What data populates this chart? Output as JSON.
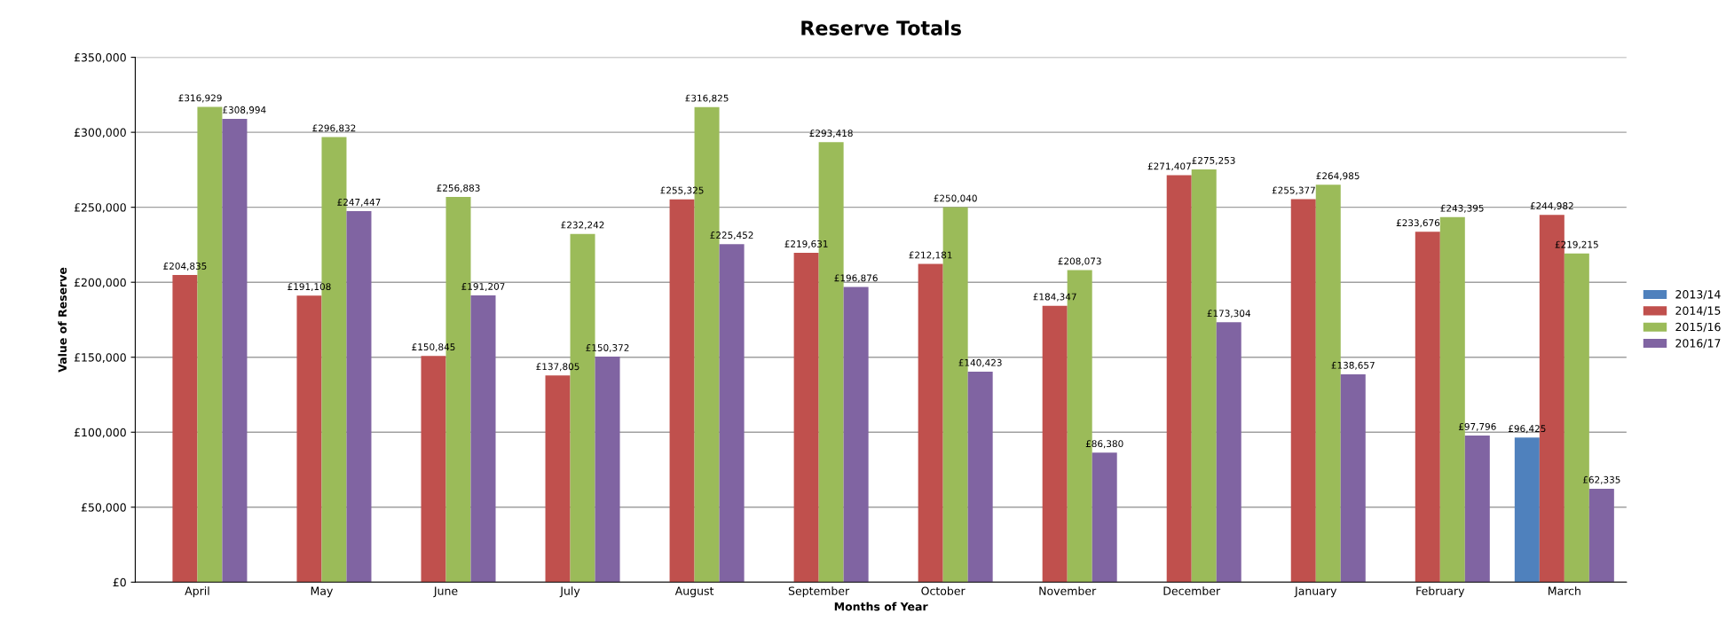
{
  "chart_data": {
    "type": "bar",
    "title": "Reserve Totals",
    "xlabel": "Months of Year",
    "ylabel": "Value of Reserve",
    "categories": [
      "April",
      "May",
      "June",
      "July",
      "August",
      "September",
      "October",
      "November",
      "December",
      "January",
      "February",
      "March"
    ],
    "series": [
      {
        "name": "2013/14",
        "color": "#4f81bd",
        "values": [
          null,
          null,
          null,
          null,
          null,
          null,
          null,
          null,
          null,
          null,
          null,
          96425
        ],
        "value_labels": [
          null,
          null,
          null,
          null,
          null,
          null,
          null,
          null,
          null,
          null,
          null,
          "£96,425"
        ]
      },
      {
        "name": "2014/15",
        "color": "#c0504d",
        "values": [
          204835,
          191108,
          150845,
          137805,
          255325,
          219631,
          212181,
          184347,
          271407,
          255377,
          233676,
          244982
        ],
        "value_labels": [
          "£204,835",
          "£191,108",
          "£150,845",
          "£137,805",
          "£255,325",
          "£219,631",
          "£212,181",
          "£184,347",
          "£271,407",
          "£255,377",
          "£233,676",
          "£244,982"
        ]
      },
      {
        "name": "2015/16",
        "color": "#9bbb59",
        "values": [
          316929,
          296832,
          256883,
          232242,
          316825,
          293418,
          250040,
          208073,
          275253,
          264985,
          243395,
          219215
        ],
        "value_labels": [
          "£316,929",
          "£296,832",
          "£256,883",
          "£232,242",
          "£316,825",
          "£293,418",
          "£250,040",
          "£208,073",
          "£275,253",
          "£264,985",
          "£243,395",
          "£219,215"
        ]
      },
      {
        "name": "2016/17",
        "color": "#8064a2",
        "values": [
          308994,
          247447,
          191207,
          150372,
          225452,
          196876,
          140423,
          86380,
          173304,
          138657,
          97796,
          62335
        ],
        "value_labels": [
          "£308,994",
          "£247,447",
          "£191,207",
          "£150,372",
          "£225,452",
          "£196,876",
          "£140,423",
          "£86,380",
          "£173,304",
          "£138,657",
          "£97,796",
          "£62,335"
        ]
      }
    ],
    "ylim": [
      0,
      350000
    ],
    "yticks": [
      {
        "value": 0,
        "label": "£0"
      },
      {
        "value": 50000,
        "label": "£50,000"
      },
      {
        "value": 100000,
        "label": "£100,000"
      },
      {
        "value": 150000,
        "label": "£150,000"
      },
      {
        "value": 200000,
        "label": "£200,000"
      },
      {
        "value": 250000,
        "label": "£250,000"
      },
      {
        "value": 300000,
        "label": "£300,000"
      },
      {
        "value": 350000,
        "label": "£350,000"
      }
    ],
    "grid": "y",
    "legend": "right"
  }
}
